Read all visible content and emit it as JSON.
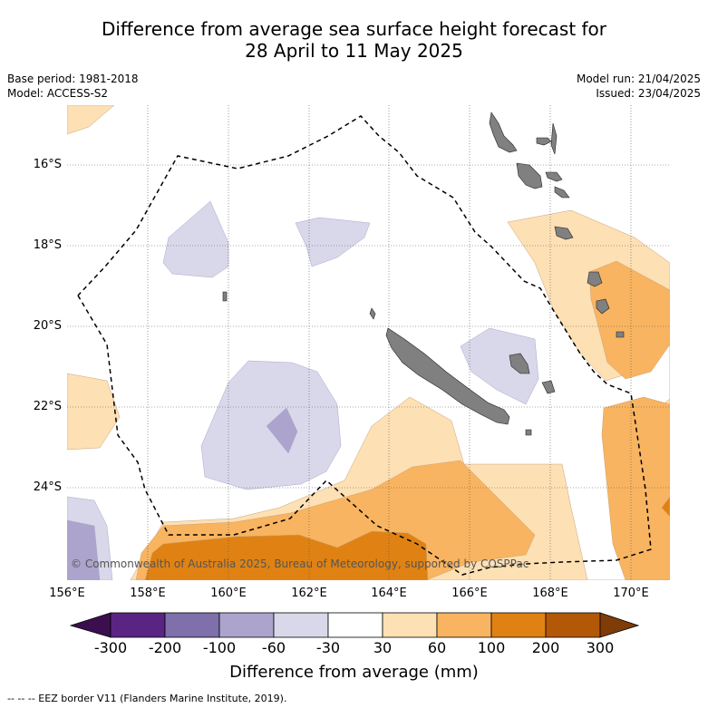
{
  "title_line1": "Difference from average sea surface height forecast for",
  "title_line2": "28 April to 11 May 2025",
  "base_period": "Base period: 1981-2018",
  "model": "Model: ACCESS-S2",
  "model_run": "Model run: 21/04/2025",
  "issued": "Issued: 23/04/2025",
  "lat_ticks": [
    "16°S",
    "18°S",
    "20°S",
    "22°S",
    "24°S"
  ],
  "lon_ticks": [
    "156°E",
    "158°E",
    "160°E",
    "162°E",
    "164°E",
    "166°E",
    "168°E",
    "170°E"
  ],
  "copyright": "© Commonwealth of Australia 2025, Bureau of Meteorology, supported by COSPPac",
  "colorbar": {
    "title": "Difference from average (mm)",
    "tick_labels": [
      "-300",
      "-200",
      "-100",
      "-60",
      "-30",
      "30",
      "60",
      "100",
      "200",
      "300"
    ],
    "colors": [
      "#3b0f4f",
      "#5a2483",
      "#7f6fab",
      "#aca4cc",
      "#d8d8ea",
      "#ffffff",
      "#fde0b4",
      "#f8b460",
      "#e08213",
      "#b35806",
      "#7f3b08"
    ]
  },
  "footnote": "--  --  -- EEZ border V11 (Flanders Marine Institute, 2019)."
}
